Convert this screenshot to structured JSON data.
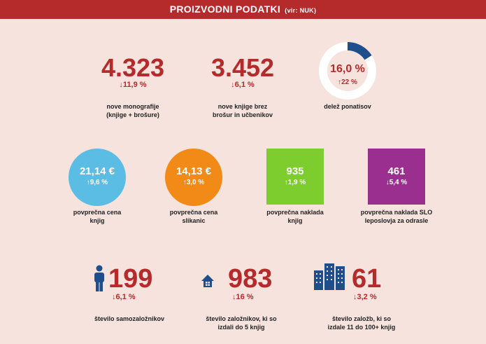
{
  "header": {
    "title": "PROIZVODNI PODATKI",
    "source": "(vir: NUK)"
  },
  "row1": [
    {
      "value": "4.323",
      "change": "↓11,9 %",
      "label_1": "nove monografije",
      "label_2": "(knjige + brošure)"
    },
    {
      "value": "3.452",
      "change": "↓6,1 %",
      "label_1": "nove knjige brez",
      "label_2": "brošur in učbenikov"
    },
    {
      "value": "16,0 %",
      "change": "↑22 %",
      "label_1": "delež ponatisov",
      "share": 0.16
    }
  ],
  "row2": [
    {
      "value": "21,14 €",
      "change": "↑9,6 %",
      "label_1": "povprečna cena",
      "label_2": "knjig",
      "color": "#5bbde4"
    },
    {
      "value": "14,13 €",
      "change": "↑3,0 %",
      "label_1": "povprečna cena",
      "label_2": "slikanic",
      "color": "#f28a17"
    },
    {
      "value": "935",
      "change": "↑1,9 %",
      "label_1": "povprečna naklada",
      "label_2": "knjig",
      "color": "#7ccd2d"
    },
    {
      "value": "461",
      "change": "↓5,4 %",
      "label_1": "povprečna naklada SLO",
      "label_2": "leposlovja za odrasle",
      "color": "#9b2f8f"
    }
  ],
  "row3": [
    {
      "value": "199",
      "change": "↓6,1 %",
      "label_1": "število samozaložnikov",
      "icon": "person-icon"
    },
    {
      "value": "983",
      "change": "↓16 %",
      "label_1": "število založnikov, ki so",
      "label_2": "izdali do 5 knjig",
      "icon": "house-icon"
    },
    {
      "value": "61",
      "change": "↓3,2 %",
      "label_1": "število založb, ki so",
      "label_2": "izdale 11 do 100+ knjig",
      "icon": "buildings-icon"
    }
  ],
  "colors": {
    "accent": "#b52a2a",
    "icon_blue": "#1f4e8c",
    "background": "#f6e3dd"
  }
}
